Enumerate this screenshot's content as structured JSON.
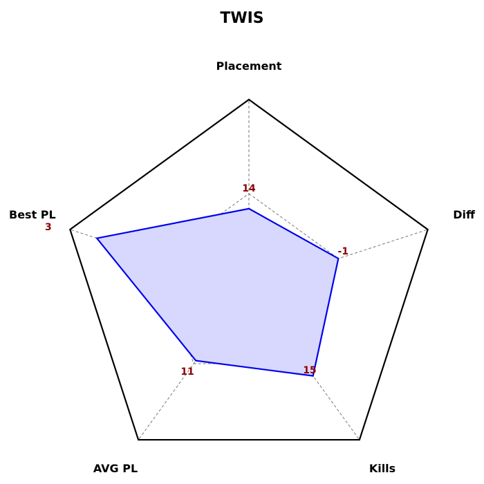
{
  "chart_data": {
    "type": "radar",
    "title": "TWIS",
    "axes": [
      "Placement",
      "Diff",
      "Kills",
      "AVG PL",
      "Best PL"
    ],
    "values": [
      14,
      -1,
      15,
      11,
      3
    ],
    "value_labels": [
      "14",
      "-1",
      "15",
      "11",
      "3"
    ],
    "normalized": [
      0.42,
      0.5,
      0.58,
      0.48,
      0.85
    ],
    "grid": true,
    "colors": {
      "series_line": "#0000ee",
      "series_fill": "#d8d8ff",
      "outline": "#000000",
      "grid": "#777777",
      "value_text": "#8b0000"
    }
  }
}
